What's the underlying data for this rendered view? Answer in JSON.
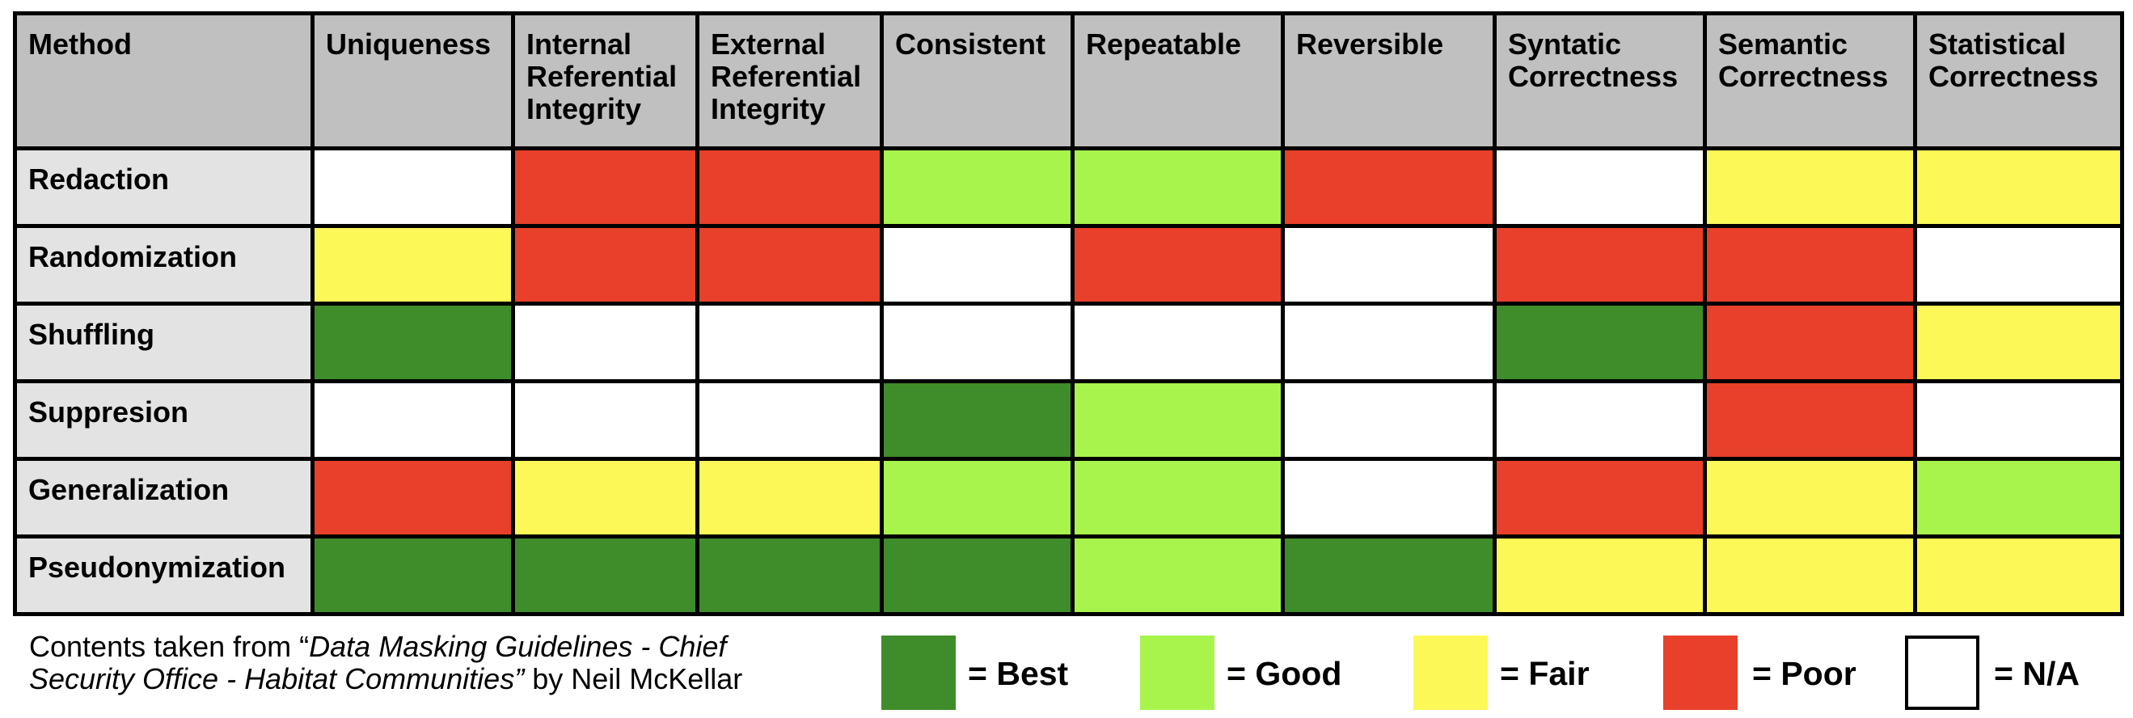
{
  "colors": {
    "best": "#3f8c2a",
    "good": "#a8f44c",
    "fair": "#fbf858",
    "poor": "#e8402a",
    "na": "#ffffff"
  },
  "table": {
    "header_method": "Method",
    "columns": [
      "Uniqueness",
      "Internal Referential Integrity",
      "External Referential Integrity",
      "Consistent",
      "Repeatable",
      "Reversible",
      "Syntatic Correctness",
      "Semantic Correctness",
      "Statistical Correctness"
    ],
    "rows": [
      {
        "method": "Redaction",
        "ratings": [
          "na",
          "poor",
          "poor",
          "good",
          "good",
          "poor",
          "na",
          "fair",
          "fair"
        ]
      },
      {
        "method": "Randomization",
        "ratings": [
          "fair",
          "poor",
          "poor",
          "na",
          "poor",
          "na",
          "poor",
          "poor",
          "na"
        ]
      },
      {
        "method": "Shuffling",
        "ratings": [
          "best",
          "na",
          "na",
          "na",
          "na",
          "na",
          "best",
          "poor",
          "fair"
        ]
      },
      {
        "method": "Suppresion",
        "ratings": [
          "na",
          "na",
          "na",
          "best",
          "good",
          "na",
          "na",
          "poor",
          "na"
        ]
      },
      {
        "method": "Generalization",
        "ratings": [
          "poor",
          "fair",
          "fair",
          "good",
          "good",
          "na",
          "poor",
          "fair",
          "good"
        ]
      },
      {
        "method": "Pseudonymization",
        "ratings": [
          "best",
          "best",
          "best",
          "best",
          "good",
          "best",
          "fair",
          "fair",
          "fair"
        ]
      }
    ]
  },
  "footer": {
    "prefix": "Contents taken from “",
    "source_title": "Data Masking Guidelines - Chief Security Office - Habitat Communities”",
    "suffix": " by Neil McKellar"
  },
  "legend": [
    {
      "key": "best",
      "label": "= Best"
    },
    {
      "key": "good",
      "label": "= Good"
    },
    {
      "key": "fair",
      "label": "= Fair"
    },
    {
      "key": "poor",
      "label": "= Poor"
    },
    {
      "key": "na",
      "label": "= N/A"
    }
  ]
}
